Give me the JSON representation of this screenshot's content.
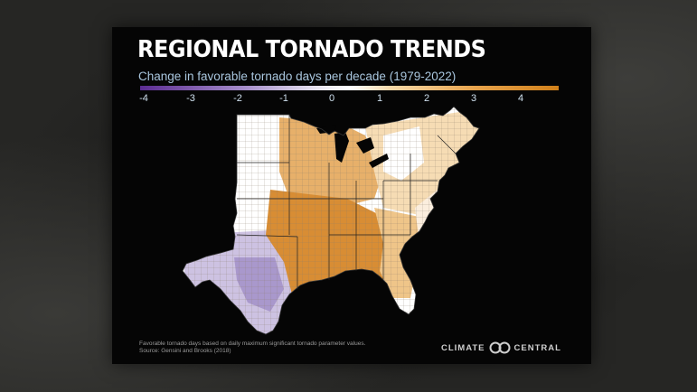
{
  "title": "REGIONAL TORNADO TRENDS",
  "subtitle": "Change in favorable tornado days per decade (1979-2022)",
  "legend": {
    "ticks": [
      "-4",
      "-3",
      "-2",
      "-1",
      "0",
      "1",
      "2",
      "3",
      "4"
    ],
    "colors": [
      "#5b2c91",
      "#a68dca",
      "#e6e2ef",
      "#ffffff",
      "#f6d8a8",
      "#e8a44d",
      "#d0801a"
    ]
  },
  "footnote": {
    "line1": "Favorable tornado days based on daily maximum significant tornado parameter values.",
    "line2": "Source: Gensini and Brooks (2018)"
  },
  "brand": {
    "left": "CLIMATE",
    "right": "CENTRAL"
  },
  "map": {
    "region_colors": {
      "plains_white": "#ffffff",
      "texas_purple": "#c9bde0",
      "texas_deep_purple": "#a998cc",
      "mississippi_orange": "#d88d34",
      "midwest_orange": "#e3a558",
      "southeast_light_orange": "#efc589",
      "northeast_light": "#f6dcb4"
    }
  }
}
